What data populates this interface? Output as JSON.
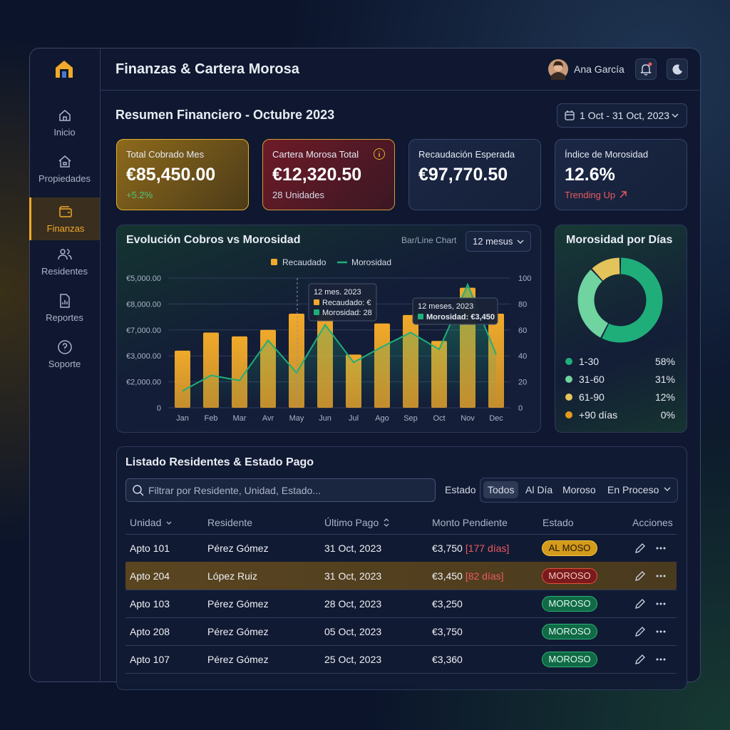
{
  "header": {
    "title": "Finanzas & Cartera Morosa",
    "user": "Ana García"
  },
  "nav": {
    "items": [
      "Inicio",
      "Propiedades",
      "Finanzas",
      "Residentes",
      "Reportes",
      "Soporte"
    ],
    "active": 2
  },
  "summary": {
    "title": "Resumen Financiero - Octubre 2023",
    "date_range": "1 Oct - 31 Oct, 2023"
  },
  "cards": [
    {
      "label": "Total Cobrado Mes",
      "value": "€85,450.00",
      "sub": "+5.2%",
      "tone": "gold",
      "sub_tone": "up"
    },
    {
      "label": "Cartera Morosa Total",
      "value": "€12,320.50",
      "sub": "28 Unidades",
      "tone": "red",
      "sub_tone": "plain"
    },
    {
      "label": "Recaudación Esperada",
      "value": "€97,770.50",
      "tone": "neutral"
    },
    {
      "label": "Índice de Morosidad",
      "value": "12.6%",
      "sub": "Trending Up",
      "tone": "neutral",
      "sub_tone": "down"
    }
  ],
  "chart_data": [
    {
      "type": "bar_line",
      "title": "Evolución Cobros vs Morosidad",
      "subtitle": "Bar/Line Chart",
      "period": "12 mesus",
      "categories": [
        "Jan",
        "Feb",
        "Mar",
        "Avr",
        "May",
        "Jun",
        "Jul",
        "Ago",
        "Sep",
        "Oct",
        "Nov",
        "Dec"
      ],
      "series": [
        {
          "name": "Recaudado",
          "type": "bar",
          "color": "#f0a92a",
          "values": [
            4400,
            5800,
            5500,
            6000,
            7250,
            7250,
            4100,
            6500,
            7150,
            5150,
            9250,
            7250
          ]
        },
        {
          "name": "Morosidad",
          "type": "line",
          "color": "#1fae7a",
          "axis": "y2",
          "values": [
            13,
            25,
            21,
            52,
            27,
            64,
            35,
            47,
            58,
            45,
            95,
            41
          ]
        }
      ],
      "ylim": [
        0,
        10000
      ],
      "y_axis_labels": [
        "€5,000.00",
        "€8,000.00",
        "€7,000.00",
        "€3,000.00",
        "€2,000.00",
        "0"
      ],
      "y2lim": [
        0,
        100
      ],
      "y2ticks": [
        0,
        20,
        40,
        60,
        80,
        100
      ],
      "grid": true,
      "annotations": [
        {
          "title": "12 mes. 2023",
          "items": [
            {
              "text": "Recaudado: €",
              "series": 0
            },
            {
              "text": "Morosidad: 28",
              "series": 1
            }
          ]
        },
        {
          "title": "12 meses, 2023",
          "items": [
            {
              "text": "Morosidad: €3,450",
              "series": 1
            }
          ]
        }
      ]
    },
    {
      "type": "donut",
      "title": "Morosidad por Días",
      "categories": [
        "1-30",
        "31-60",
        "61-90",
        "+90 días"
      ],
      "values": [
        58,
        31,
        12,
        0
      ],
      "value_labels": [
        "58%",
        "31%",
        "12%",
        "0%"
      ],
      "colors": [
        "#1fae7a",
        "#6fd4a0",
        "#e3c45a",
        "#e89a1c"
      ]
    }
  ],
  "table": {
    "title": "Listado Residentes & Estado Pago",
    "search_placeholder": "Filtrar por Residente, Unidad, Estado...",
    "filter_label": "Estado",
    "filters": [
      "Todos",
      "Al Día",
      "Moroso",
      "En Proceso"
    ],
    "active_filter": 0,
    "columns": [
      "Unidad",
      "Residente",
      "Último Pago",
      "Monto Pendiente",
      "Estado",
      "Acciones"
    ],
    "rows": [
      {
        "unit": "Apto 101",
        "resident": "Pérez Gómez",
        "last_payment": "31 Oct, 2023",
        "amount": "€3,750",
        "overdue": "[177 días]",
        "status": "AL MOSO",
        "tone": "warn"
      },
      {
        "unit": "Apto 204",
        "resident": "López Ruiz",
        "last_payment": "31 Oct, 2023",
        "amount": "€3,450",
        "overdue": "[82 días]",
        "status": "MOROSO",
        "tone": "danger",
        "highlight": true
      },
      {
        "unit": "Apto 103",
        "resident": "Pérez Gómez",
        "last_payment": "28 Oct, 2023",
        "amount": "€3,250",
        "status": "MOROSO",
        "tone": "ok"
      },
      {
        "unit": "Apto 208",
        "resident": "Pérez Gómez",
        "last_payment": "05 Oct, 2023",
        "amount": "€3,750",
        "status": "MOROSO",
        "tone": "ok"
      },
      {
        "unit": "Apto 107",
        "resident": "Pérez Gómez",
        "last_payment": "25 Oct, 2023",
        "amount": "€3,360",
        "status": "MOROSO",
        "tone": "ok"
      }
    ]
  }
}
